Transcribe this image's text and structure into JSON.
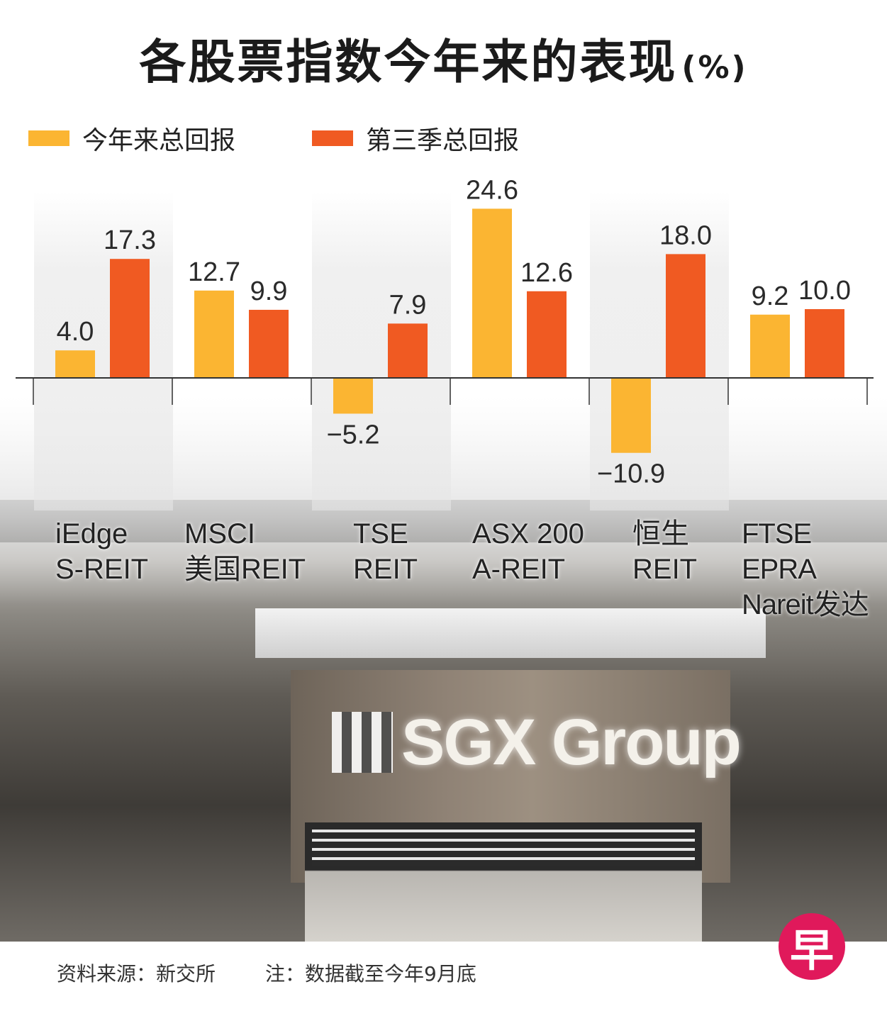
{
  "title": "各股票指数今年来的表现",
  "title_unit": "(%)",
  "legend": [
    {
      "label": "今年来总回报",
      "color": "#fbb532"
    },
    {
      "label": "第三季总回报",
      "color": "#f05a22"
    }
  ],
  "photo": {
    "logo_text": "SGX Group"
  },
  "footer": {
    "source": "资料来源：新交所",
    "note": "注：数据截至今年9月底"
  },
  "brand_logo": "早",
  "chart_data": {
    "type": "bar",
    "categories": [
      [
        "iEdge",
        "S-REIT"
      ],
      [
        "MSCI",
        "美国REIT"
      ],
      [
        "TSE",
        "REIT"
      ],
      [
        "ASX 200",
        "A-REIT"
      ],
      [
        "恒生",
        "REIT"
      ],
      [
        "FTSE EPRA",
        "Nareit发达"
      ]
    ],
    "series": [
      {
        "name": "今年来总回报",
        "color": "#fbb532",
        "values": [
          4.0,
          12.7,
          -5.2,
          24.6,
          -10.9,
          9.2
        ]
      },
      {
        "name": "第三季总回报",
        "color": "#f05a22",
        "values": [
          17.3,
          9.9,
          7.9,
          12.6,
          18.0,
          10.0
        ]
      }
    ],
    "value_labels": [
      [
        "4.0",
        "12.7",
        "−5.2",
        "24.6",
        "−10.9",
        "9.2"
      ],
      [
        "17.3",
        "9.9",
        "7.9",
        "12.6",
        "18.0",
        "10.0"
      ]
    ],
    "ylim": [
      -12,
      26
    ],
    "grid": false,
    "legend_position": "top-left"
  }
}
